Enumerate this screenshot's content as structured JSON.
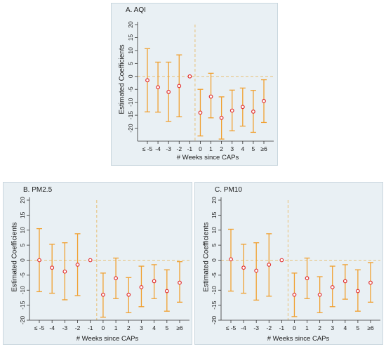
{
  "chart_data": [
    {
      "type": "scatter",
      "style": "event-study coefficient plot with 95% confidence intervals",
      "title": "A. AQI",
      "xlabel": "# Weeks since CAPs",
      "ylabel": "Estimated Coefficients",
      "categories": [
        "≤ -5",
        "-4",
        "-3",
        "-2",
        "-1",
        "0",
        "1",
        "2",
        "3",
        "4",
        "5",
        "≥6"
      ],
      "values": [
        -1.5,
        -4.2,
        -6.0,
        -3.7,
        0.0,
        -14.0,
        -7.8,
        -16.0,
        -13.2,
        -11.8,
        -13.6,
        -9.5
      ],
      "ci_low": [
        -13.7,
        -13.8,
        -17.4,
        -15.6,
        0.0,
        -23.0,
        -16.0,
        -24.2,
        -21.0,
        -19.2,
        -21.6,
        -17.8
      ],
      "ci_high": [
        10.7,
        5.5,
        5.5,
        8.3,
        0.0,
        -5.0,
        1.2,
        -7.9,
        -5.3,
        -4.5,
        -5.4,
        -1.3
      ],
      "ylim": [
        -25,
        20
      ],
      "yticks": [
        "20",
        "15",
        "10",
        "5",
        "0",
        "-5",
        "-10",
        "-15",
        "-20"
      ],
      "reference_x": "-1",
      "reference_y": 0,
      "colors": {
        "ci": "#f0a030",
        "point": "#e03030",
        "reference": "#e8c078",
        "background": "#e9f0f4"
      }
    },
    {
      "type": "scatter",
      "style": "event-study coefficient plot with 95% confidence intervals",
      "title": "B. PM2.5",
      "xlabel": "# Weeks since CAPs",
      "ylabel": "Estimated Coefficients",
      "categories": [
        "≤ -5",
        "-4",
        "-3",
        "-2",
        "-1",
        "0",
        "1",
        "2",
        "3",
        "4",
        "5",
        "≥6"
      ],
      "values": [
        0.0,
        -2.5,
        -3.8,
        -1.5,
        0.0,
        -11.5,
        -6.0,
        -11.5,
        -9.0,
        -7.0,
        -10.3,
        -7.5
      ],
      "ci_low": [
        -10.5,
        -11.0,
        -13.2,
        -11.8,
        0.0,
        -19.0,
        -12.8,
        -17.5,
        -15.5,
        -12.8,
        -17.0,
        -14.0
      ],
      "ci_high": [
        10.5,
        5.3,
        5.8,
        8.8,
        0.0,
        -4.3,
        0.7,
        -5.8,
        -2.0,
        -1.5,
        -3.2,
        -0.5
      ],
      "ylim": [
        -20,
        20
      ],
      "yticks": [
        "20",
        "15",
        "10",
        "5",
        "0",
        "-5",
        "-10",
        "-15",
        "-20"
      ],
      "reference_x": "-1",
      "reference_y": 0,
      "colors": {
        "ci": "#f0a030",
        "point": "#e03030",
        "reference": "#e8c078",
        "background": "#e9f0f4"
      }
    },
    {
      "type": "scatter",
      "style": "event-study coefficient plot with 95% confidence intervals",
      "title": "C. PM10",
      "xlabel": "# Weeks since CAPs",
      "ylabel": "Estimated Coefficients",
      "categories": [
        "≤ -5",
        "-4",
        "-3",
        "-2",
        "-1",
        "0",
        "1",
        "2",
        "3",
        "4",
        "5",
        "≥6"
      ],
      "values": [
        0.3,
        -2.5,
        -3.5,
        -1.5,
        0.0,
        -11.5,
        -6.0,
        -11.5,
        -9.0,
        -7.0,
        -10.3,
        -7.5
      ],
      "ci_low": [
        -10.3,
        -11.0,
        -13.3,
        -12.0,
        0.0,
        -18.8,
        -12.8,
        -17.5,
        -15.5,
        -13.0,
        -17.0,
        -14.0
      ],
      "ci_high": [
        10.3,
        5.3,
        5.8,
        8.8,
        0.0,
        -4.3,
        0.7,
        -5.5,
        -2.0,
        -1.5,
        -3.2,
        -0.8
      ],
      "ylim": [
        -20,
        20
      ],
      "yticks": [
        "20",
        "15",
        "10",
        "5",
        "0",
        "-5",
        "-10",
        "-15",
        "-20"
      ],
      "reference_x": "-1",
      "reference_y": 0,
      "colors": {
        "ci": "#f0a030",
        "point": "#e03030",
        "reference": "#e8c078",
        "background": "#e9f0f4"
      }
    }
  ]
}
